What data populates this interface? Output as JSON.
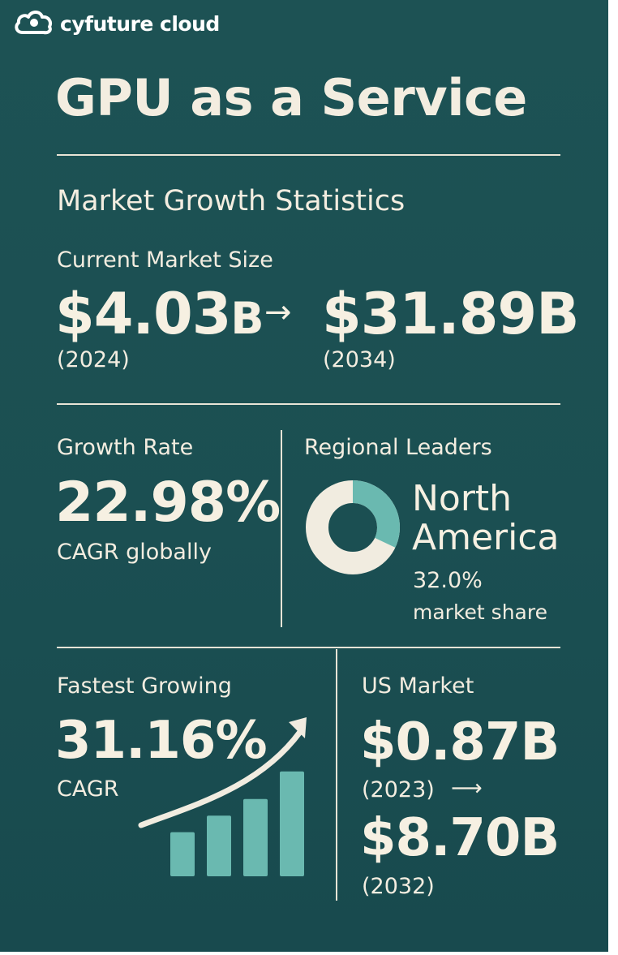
{
  "brand": {
    "name": "cyfuture cloud",
    "logo_icon": "cloud-icon"
  },
  "title": "GPU as a Service",
  "section_title": "Market Growth Statistics",
  "market_size": {
    "label": "Current Market Size",
    "from_value": "$4.03",
    "from_unit": "B",
    "arrow": "→",
    "to_value": "$31.89B",
    "from_year": "(2024)",
    "to_year": "(2034)"
  },
  "growth_rate": {
    "label": "Growth Rate",
    "value": "22.98%",
    "caption": "CAGR globally"
  },
  "regional": {
    "label": "Regional Leaders",
    "region_line1": "North",
    "region_line2": "America",
    "share_value": "32.0%",
    "share_label": "market share",
    "share_fraction": 0.32
  },
  "fastest": {
    "label": "Fastest Growing",
    "value": "31.16%",
    "caption": "CAGR",
    "bar_levels": [
      0.4,
      0.55,
      0.7,
      0.95
    ]
  },
  "us_market": {
    "label": "US Market",
    "from_value": "$0.87B",
    "from_year": "(2023)",
    "arrow": "⟶",
    "to_value": "$8.70B",
    "to_year": "(2032)"
  },
  "colors": {
    "background": "#1c5254",
    "text": "#f3ede0",
    "accent": "#6ab9b0",
    "cream": "#f1ece0"
  }
}
